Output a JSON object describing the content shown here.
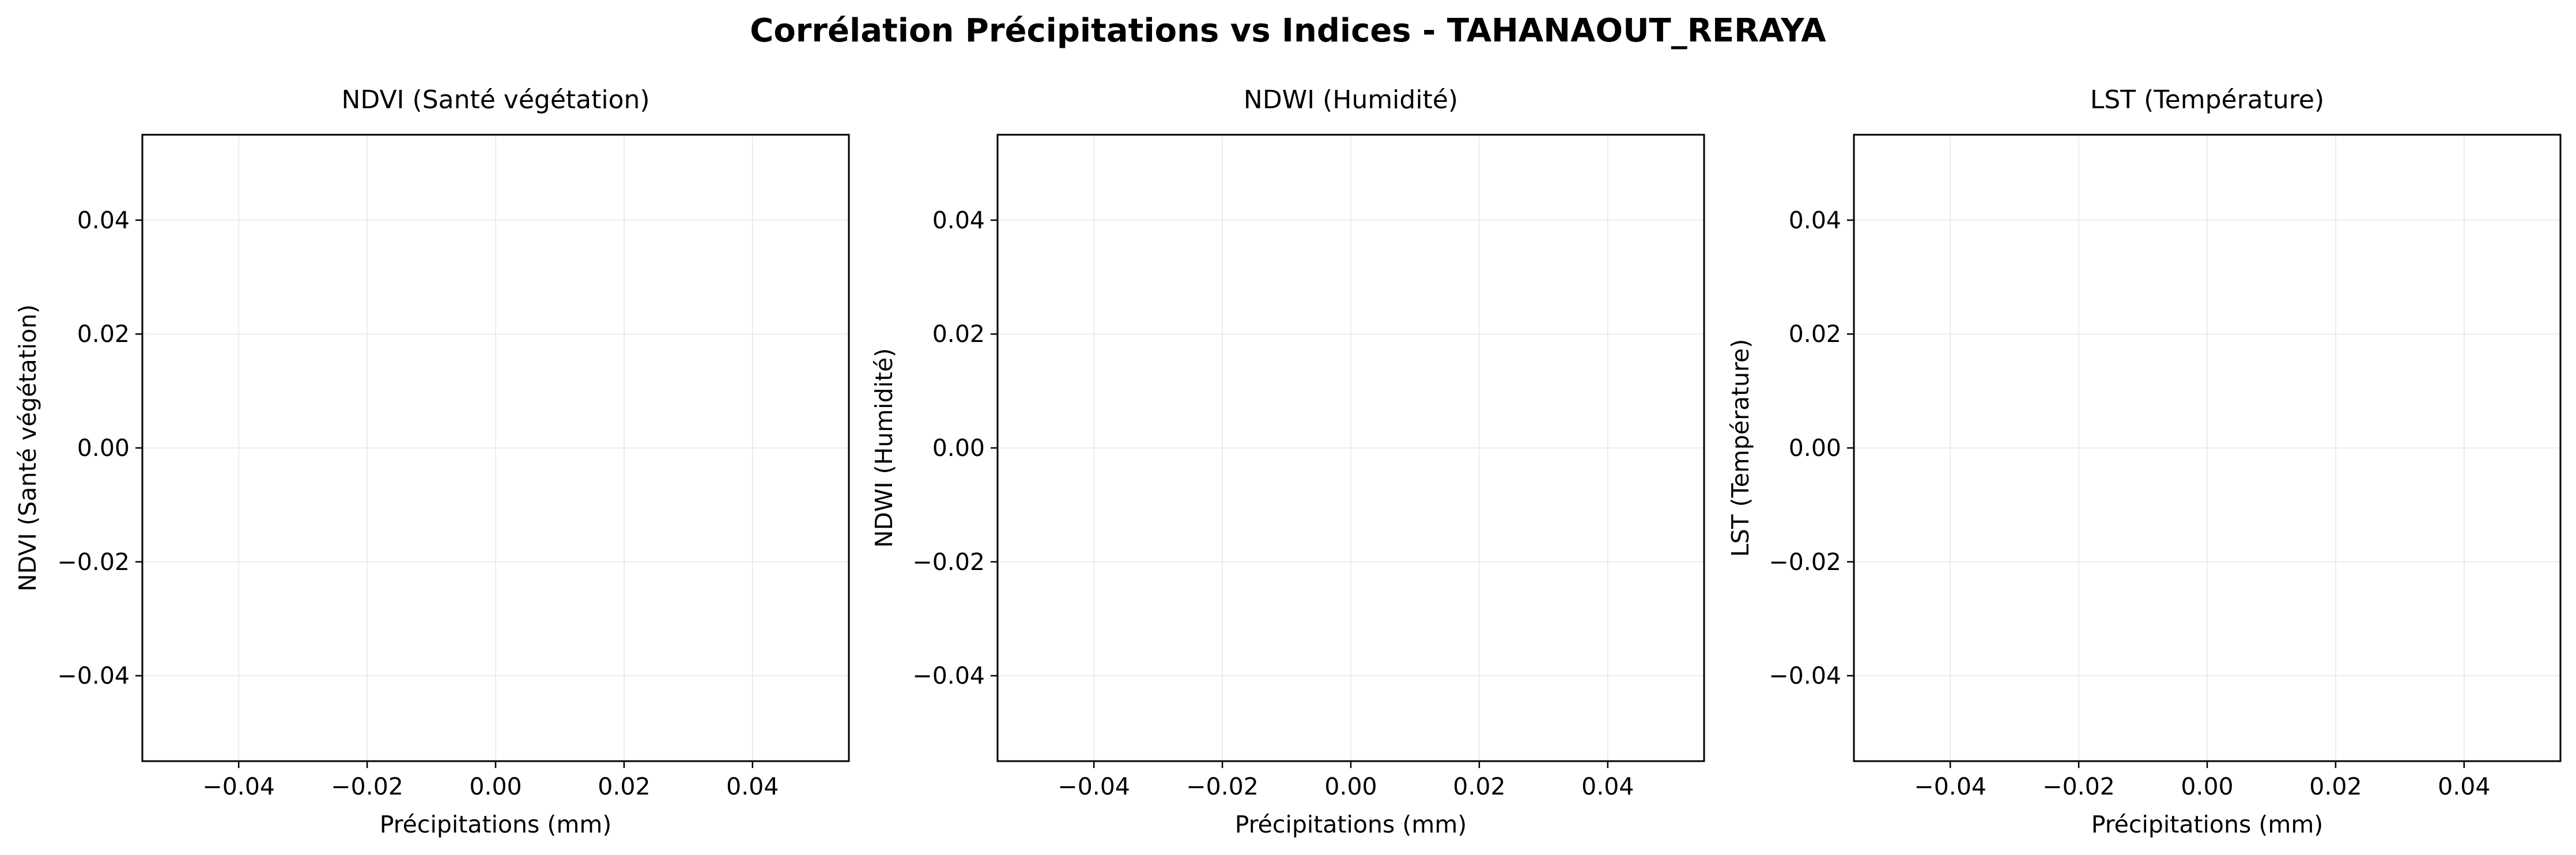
{
  "chart_data": {
    "type": "scatter",
    "title": "Corrélation Précipitations vs Indices - TAHANAOUT_RERAYA",
    "grid": true,
    "panels": [
      {
        "title": "NDVI (Santé végétation)",
        "xlabel": "Précipitations (mm)",
        "ylabel": "NDVI (Santé végétation)",
        "xlim": [
          -0.055,
          0.055
        ],
        "ylim": [
          -0.055,
          0.055
        ],
        "xticks": [
          -0.04,
          -0.02,
          0.0,
          0.02,
          0.04
        ],
        "yticks": [
          -0.04,
          -0.02,
          0.0,
          0.02,
          0.04
        ],
        "xtick_labels": [
          "−0.04",
          "−0.02",
          "0.00",
          "0.02",
          "0.04"
        ],
        "ytick_labels": [
          "−0.04",
          "−0.02",
          "0.00",
          "0.02",
          "0.04"
        ],
        "points": []
      },
      {
        "title": "NDWI (Humidité)",
        "xlabel": "Précipitations (mm)",
        "ylabel": "NDWI (Humidité)",
        "xlim": [
          -0.055,
          0.055
        ],
        "ylim": [
          -0.055,
          0.055
        ],
        "xticks": [
          -0.04,
          -0.02,
          0.0,
          0.02,
          0.04
        ],
        "yticks": [
          -0.04,
          -0.02,
          0.0,
          0.02,
          0.04
        ],
        "xtick_labels": [
          "−0.04",
          "−0.02",
          "0.00",
          "0.02",
          "0.04"
        ],
        "ytick_labels": [
          "−0.04",
          "−0.02",
          "0.00",
          "0.02",
          "0.04"
        ],
        "points": []
      },
      {
        "title": "LST (Température)",
        "xlabel": "Précipitations (mm)",
        "ylabel": "LST (Température)",
        "xlim": [
          -0.055,
          0.055
        ],
        "ylim": [
          -0.055,
          0.055
        ],
        "xticks": [
          -0.04,
          -0.02,
          0.0,
          0.02,
          0.04
        ],
        "yticks": [
          -0.04,
          -0.02,
          0.0,
          0.02,
          0.04
        ],
        "xtick_labels": [
          "−0.04",
          "−0.02",
          "0.00",
          "0.02",
          "0.04"
        ],
        "ytick_labels": [
          "−0.04",
          "−0.02",
          "0.00",
          "0.02",
          "0.04"
        ],
        "points": []
      }
    ]
  }
}
